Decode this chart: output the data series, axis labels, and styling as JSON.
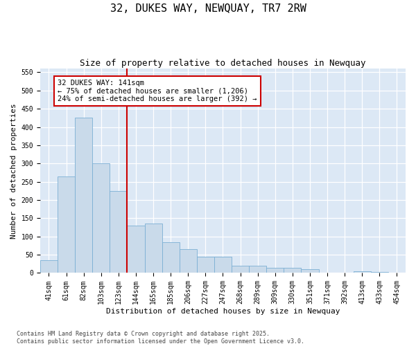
{
  "title": "32, DUKES WAY, NEWQUAY, TR7 2RW",
  "subtitle": "Size of property relative to detached houses in Newquay",
  "xlabel": "Distribution of detached houses by size in Newquay",
  "ylabel": "Number of detached properties",
  "bar_color": "#c9daea",
  "bar_edge_color": "#7bafd4",
  "background_color": "#dce8f5",
  "grid_color": "#ffffff",
  "categories": [
    "41sqm",
    "61sqm",
    "82sqm",
    "103sqm",
    "123sqm",
    "144sqm",
    "165sqm",
    "185sqm",
    "206sqm",
    "227sqm",
    "247sqm",
    "268sqm",
    "289sqm",
    "309sqm",
    "330sqm",
    "351sqm",
    "371sqm",
    "392sqm",
    "413sqm",
    "433sqm",
    "454sqm"
  ],
  "values": [
    35,
    265,
    425,
    300,
    225,
    130,
    135,
    85,
    65,
    45,
    45,
    20,
    20,
    15,
    15,
    10,
    0,
    0,
    5,
    2,
    0
  ],
  "vline_color": "#cc0000",
  "vline_index": 5,
  "annotation_box_text": "32 DUKES WAY: 141sqm\n← 75% of detached houses are smaller (1,206)\n24% of semi-detached houses are larger (392) →",
  "ylim": [
    0,
    560
  ],
  "yticks": [
    0,
    50,
    100,
    150,
    200,
    250,
    300,
    350,
    400,
    450,
    500,
    550
  ],
  "footnote": "Contains HM Land Registry data © Crown copyright and database right 2025.\nContains public sector information licensed under the Open Government Licence v3.0.",
  "title_fontsize": 11,
  "subtitle_fontsize": 9,
  "axis_label_fontsize": 8,
  "tick_fontsize": 7,
  "annot_fontsize": 7.5,
  "footnote_fontsize": 6
}
